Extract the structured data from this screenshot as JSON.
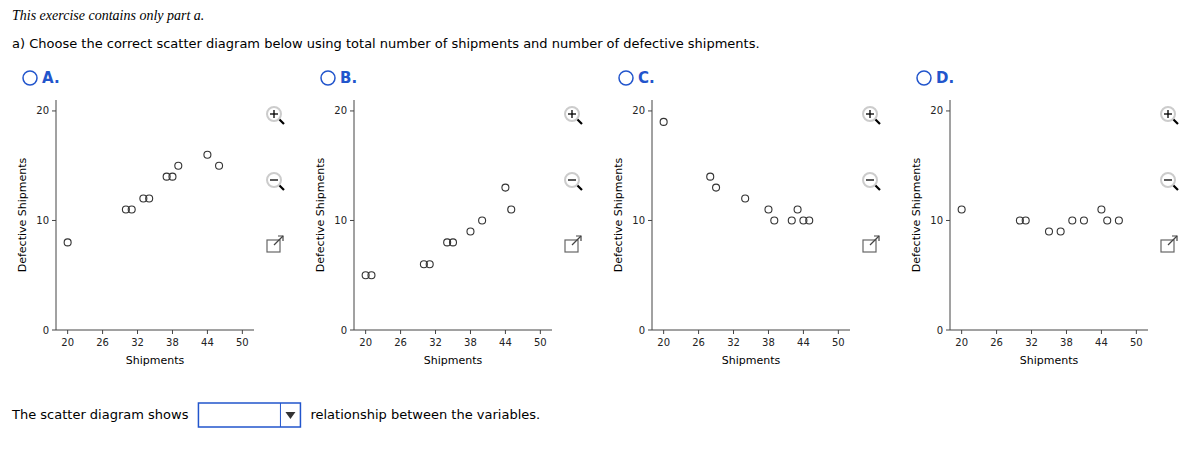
{
  "title": "This exercise contains only part a.",
  "subtitle": "a) Choose the correct scatter diagram below using total number of shipments and number of defective shipments.",
  "annotations": [
    "The scatter diagram shows",
    "relationship between the variables."
  ],
  "chart_data": [
    {
      "type": "scatter",
      "title": "A.",
      "x": [
        20,
        30,
        31,
        33,
        34,
        37,
        38,
        39,
        44,
        46
      ],
      "values": [
        8,
        11,
        11,
        12,
        12,
        14,
        14,
        15,
        16,
        15
      ],
      "xlabel": "Shipments",
      "ylabel": "Defective Shipments",
      "xlim": [
        18,
        52
      ],
      "ylim": [
        0,
        21
      ],
      "xticks": [
        20,
        26,
        32,
        38,
        44,
        50
      ],
      "yticks": [
        0,
        10,
        20
      ],
      "color": "#333333",
      "marker": "circle-open"
    },
    {
      "type": "scatter",
      "title": "B.",
      "x": [
        20,
        21,
        30,
        31,
        34,
        35,
        38,
        40,
        44,
        45
      ],
      "values": [
        5,
        5,
        6,
        6,
        8,
        8,
        9,
        10,
        13,
        11
      ],
      "xlabel": "Shipments",
      "ylabel": "Defective Shipments",
      "xlim": [
        18,
        52
      ],
      "ylim": [
        0,
        21
      ],
      "xticks": [
        20,
        26,
        32,
        38,
        44,
        50
      ],
      "yticks": [
        0,
        10,
        20
      ],
      "color": "#333333",
      "marker": "circle-open"
    },
    {
      "type": "scatter",
      "title": "C.",
      "x": [
        20,
        28,
        29,
        34,
        38,
        39,
        42,
        43,
        44,
        45
      ],
      "values": [
        19,
        14,
        13,
        12,
        11,
        10,
        10,
        11,
        10,
        10
      ],
      "xlabel": "Shipments",
      "ylabel": "Defective Shipments",
      "xlim": [
        18,
        52
      ],
      "ylim": [
        0,
        21
      ],
      "xticks": [
        20,
        26,
        32,
        38,
        44,
        50
      ],
      "yticks": [
        0,
        10,
        20
      ],
      "color": "#333333",
      "marker": "circle-open"
    },
    {
      "type": "scatter",
      "title": "D.",
      "x": [
        20,
        30,
        31,
        35,
        37,
        39,
        41,
        44,
        45,
        47
      ],
      "values": [
        11,
        10,
        10,
        9,
        9,
        10,
        10,
        11,
        10,
        10
      ],
      "xlabel": "Shipments",
      "ylabel": "Defective Shipments",
      "xlim": [
        18,
        52
      ],
      "ylim": [
        0,
        21
      ],
      "xticks": [
        20,
        26,
        32,
        38,
        44,
        50
      ],
      "yticks": [
        0,
        10,
        20
      ],
      "color": "#333333",
      "marker": "circle-open"
    }
  ]
}
